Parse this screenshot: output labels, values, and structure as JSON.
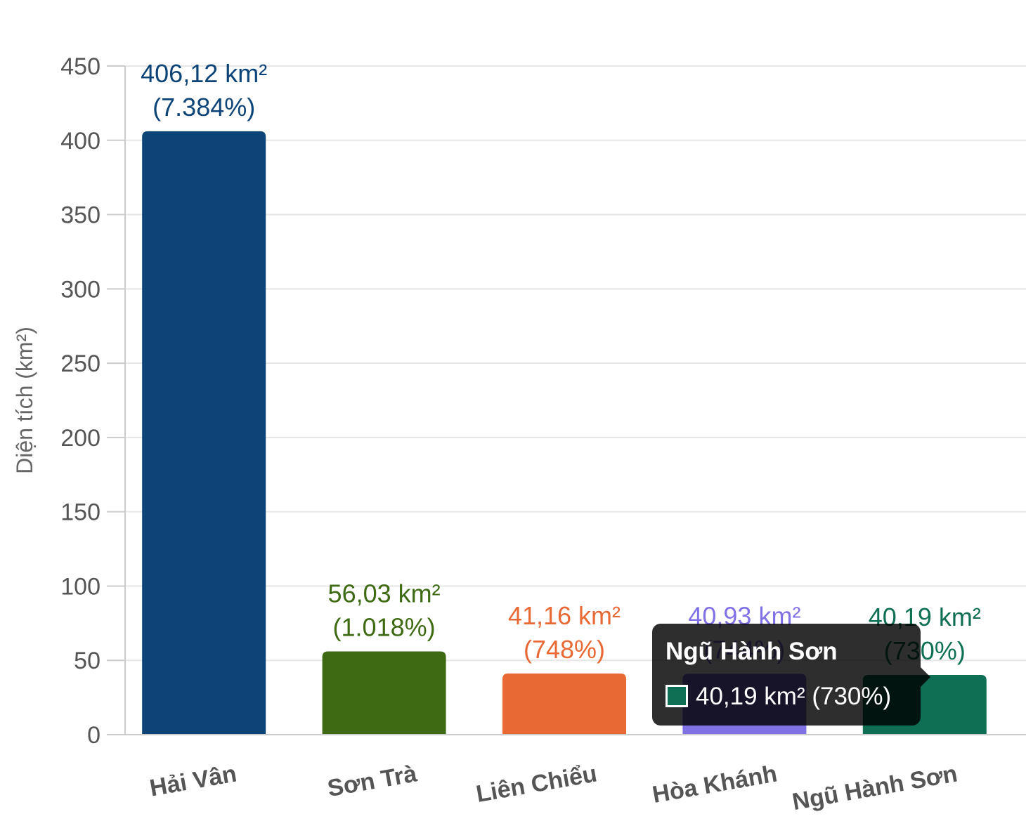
{
  "chart_data": {
    "type": "bar",
    "ylabel": "Diện tích (km²)",
    "xlabel": "",
    "ylim": [
      0,
      450
    ],
    "yticks": [
      0,
      50,
      100,
      150,
      200,
      250,
      300,
      350,
      400,
      450
    ],
    "grid": true,
    "categories": [
      "Hải Vân",
      "Sơn Trà",
      "Liên Chiểu",
      "Hòa Khánh",
      "Ngũ Hành Sơn"
    ],
    "values": [
      406.12,
      56.03,
      41.16,
      40.93,
      40.19
    ],
    "colors": [
      "#0d4477",
      "#3e6a13",
      "#e96935",
      "#8072e6",
      "#0f6f55"
    ],
    "value_labels": [
      "406,12 km²",
      "56,03 km²",
      "41,16 km²",
      "40,93 km²",
      "40,19 km²"
    ],
    "percent_labels": [
      "(7.384%)",
      "(1.018%)",
      "(748%)",
      "(744%)",
      "(730%)"
    ]
  },
  "tooltip": {
    "title": "Ngũ Hành Sơn",
    "value_text": "40,19 km² (730%)",
    "swatch_color": "#0f6f55"
  }
}
